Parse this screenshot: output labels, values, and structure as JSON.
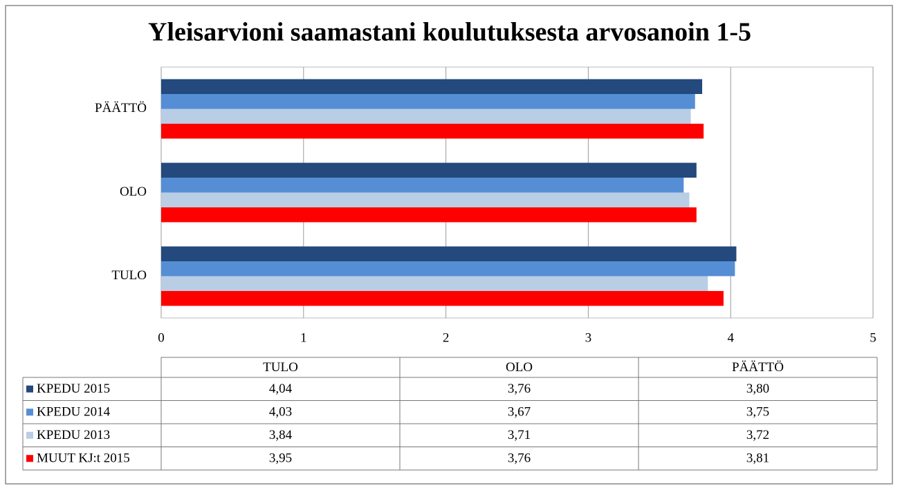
{
  "chart_data": {
    "type": "bar",
    "orientation": "horizontal",
    "title": "Yleisarvioni saamastani koulutuksesta arvosanoin 1-5",
    "categories": [
      "TULO",
      "OLO",
      "PÄÄTTÖ"
    ],
    "series": [
      {
        "name": "KPEDU 2015",
        "color": "#23497d",
        "values": [
          4.04,
          3.76,
          3.8
        ],
        "value_labels": [
          "4,04",
          "3,76",
          "3,80"
        ]
      },
      {
        "name": "KPEDU 2014",
        "color": "#558ed5",
        "values": [
          4.03,
          3.67,
          3.75
        ],
        "value_labels": [
          "4,03",
          "3,67",
          "3,75"
        ]
      },
      {
        "name": "KPEDU 2013",
        "color": "#b9cde5",
        "values": [
          3.84,
          3.71,
          3.72
        ],
        "value_labels": [
          "3,84",
          "3,71",
          "3,72"
        ]
      },
      {
        "name": "MUUT KJ:t 2015",
        "color": "#ff0000",
        "values": [
          3.95,
          3.76,
          3.81
        ],
        "value_labels": [
          "3,95",
          "3,76",
          "3,81"
        ]
      }
    ],
    "xlim": [
      0,
      5
    ],
    "xticks": [
      0,
      1,
      2,
      3,
      4,
      5
    ],
    "grid": true
  }
}
